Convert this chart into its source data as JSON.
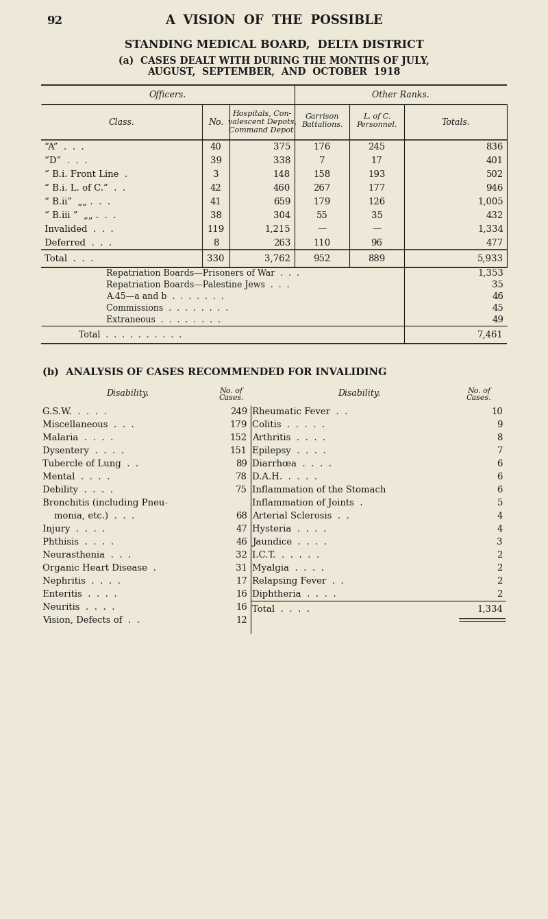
{
  "bg_color": "#ede8d8",
  "text_color": "#1a1a1a",
  "page_number": "92",
  "page_title": "A  VISION  OF  THE  POSSIBLE",
  "section_title": "STANDING MEDICAL BOARD,  DELTA DISTRICT",
  "subsection_a_line1": "(a)  CASES DEALT WITH DURING THE MONTHS OF JULY,",
  "subsection_a_line2": "AUGUST,  SEPTEMBER,  AND  OCTOBER  1918",
  "group_officers": "Officers.",
  "group_other": "Other Ranks.",
  "col_class": "Class.",
  "col_no": "No.",
  "col_hosp1": "Hospitals, Con-",
  "col_hosp2": "valescent Depots,",
  "col_hosp3": "Command Depot.",
  "col_garr1": "Garrison",
  "col_garr2": "Battalions.",
  "col_loc1": "L. of C.",
  "col_loc2": "Personnel.",
  "col_totals": "Totals.",
  "rows": [
    [
      "“A”  .  .  .",
      "40",
      "375",
      "176",
      "245",
      "836"
    ],
    [
      "“D”  .  .  .",
      "39",
      "338",
      "7",
      "17",
      "401"
    ],
    [
      "“ B.i. Front Line  .",
      "3",
      "148",
      "158",
      "193",
      "502"
    ],
    [
      "“ B.i. L. of C.”  .  .",
      "42",
      "460",
      "267",
      "177",
      "946"
    ],
    [
      "“ B.ii”  „„ .  .  .",
      "41",
      "659",
      "179",
      "126",
      "1,005"
    ],
    [
      "“ B.iii ”  „„ .  .  .",
      "38",
      "304",
      "55",
      "35",
      "432"
    ],
    [
      "Invalided  .  .  .",
      "119",
      "1,215",
      "—",
      "—",
      "1,334"
    ],
    [
      "Deferred  .  .  .",
      "8",
      "263",
      "110",
      "96",
      "477"
    ]
  ],
  "total_row": [
    "Total  .  .  .",
    "330",
    "3,762",
    "952",
    "889",
    "5,933"
  ],
  "extra_rows": [
    [
      "Repatriation Boards—Prisoners of War  .  .  .",
      "1,353"
    ],
    [
      "Repatriation Boards—Palestine Jews  .  .  .",
      "35"
    ],
    [
      "A.45—a and b  .  .  .  .  .  .  .",
      "46"
    ],
    [
      "Commissions  .  .  .  .  .  .  .  .",
      "45"
    ],
    [
      "Extraneous  .  .  .  .  .  .  .  .",
      "49"
    ]
  ],
  "grand_total_label": "Total  .  .  .  .  .  .  .  .  .  .",
  "grand_total_value": "7,461",
  "subsection_b_title": "(b)  ANALYSIS OF CASES RECOMMENDED FOR INVALIDING",
  "b_hdr_left": "Disability.",
  "b_hdr_no_of": "No. of",
  "b_hdr_cases": "Cases.",
  "b_hdr_right": "Disability.",
  "b_left": [
    [
      "G.S.W.  .  .  .  .",
      "249"
    ],
    [
      "Miscellaneous  .  .  .",
      "179"
    ],
    [
      "Malaria  .  .  .  .",
      "152"
    ],
    [
      "Dysentery  .  .  .  .",
      "151"
    ],
    [
      "Tubercle of Lung  .  .",
      "89"
    ],
    [
      "Mental  .  .  .  .",
      "78"
    ],
    [
      "Debility  .  .  .  .",
      "75"
    ],
    [
      "Bronchitis (including Pneu-",
      ""
    ],
    [
      "    monia, etc.)  .  .  .",
      "68"
    ],
    [
      "Injury  .  .  .  .",
      "47"
    ],
    [
      "Phthisis  .  .  .  .",
      "46"
    ],
    [
      "Neurasthenia  .  .  .",
      "32"
    ],
    [
      "Organic Heart Disease  .",
      "31"
    ],
    [
      "Nephritis  .  .  .  .",
      "17"
    ],
    [
      "Enteritis  .  .  .  .",
      "16"
    ],
    [
      "Neuritis  .  .  .  .",
      "16"
    ],
    [
      "Vision, Defects of  .  .",
      "12"
    ]
  ],
  "b_right": [
    [
      "Rheumatic Fever  .  .",
      "10"
    ],
    [
      "Colitis  .  .  .  .  .",
      "9"
    ],
    [
      "Arthritis  .  .  .  .",
      "8"
    ],
    [
      "Epilepsy  .  .  .  .",
      "7"
    ],
    [
      "Diarrhœa  .  .  .  .",
      "6"
    ],
    [
      "D.A.H.  .  .  .  .",
      "6"
    ],
    [
      "Inflammation of the Stomach",
      "6"
    ],
    [
      "Inflammation of Joints  .",
      "5"
    ],
    [
      "Arterial Sclerosis  .  .",
      "4"
    ],
    [
      "Hysteria  .  .  .  .",
      "4"
    ],
    [
      "Jaundice  .  .  .  .",
      "3"
    ],
    [
      "I.C.T.  .  .  .  .  .",
      "2"
    ],
    [
      "Myalgia  .  .  .  .",
      "2"
    ],
    [
      "Relapsing Fever  .  .",
      "2"
    ],
    [
      "Diphtheria  .  .  .  .",
      "2"
    ]
  ],
  "b_total_label": "Total  .  .  .  .",
  "b_total_value": "1,334"
}
